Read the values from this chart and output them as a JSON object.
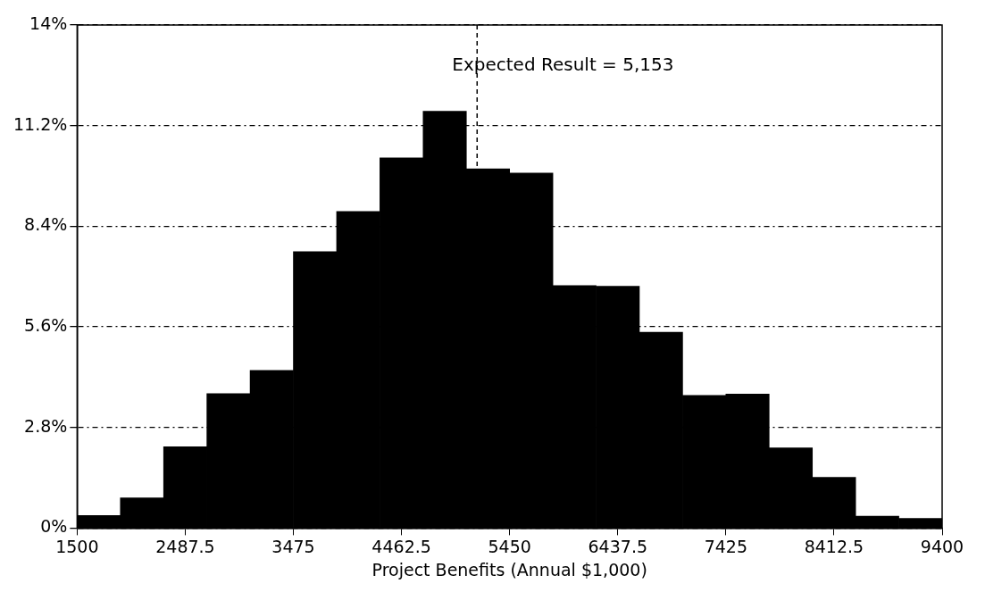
{
  "chart_data": {
    "type": "histogram",
    "xlabel": "Project Benefits (Annual $1,000)",
    "bins": [
      1500,
      1895,
      2290,
      2685,
      3080,
      3475,
      3870,
      4265,
      4660,
      5055,
      5450,
      5845,
      6240,
      6635,
      7030,
      7425,
      7820,
      8215,
      8610,
      9005,
      9400
    ],
    "values": [
      0.35,
      0.84,
      2.26,
      3.74,
      4.39,
      7.69,
      8.81,
      10.3,
      11.6,
      10.0,
      9.88,
      6.75,
      6.73,
      5.45,
      3.69,
      3.73,
      2.23,
      1.41,
      0.33,
      0.27
    ],
    "color": "#000000",
    "xlim": [
      1500,
      9400
    ],
    "xticks": [
      1500,
      2487.5,
      3475,
      4462.5,
      5450,
      6437.5,
      7425,
      8412.5,
      9400
    ],
    "ylim": [
      0,
      14
    ],
    "yticks": [
      {
        "value": 0,
        "label": "0%"
      },
      {
        "value": 2.8,
        "label": "2.8%"
      },
      {
        "value": 5.6,
        "label": "5.6%"
      },
      {
        "value": 8.4,
        "label": "8.4%"
      },
      {
        "value": 11.2,
        "label": "11.2%"
      },
      {
        "value": 14,
        "label": "14%"
      }
    ],
    "grid": "y",
    "ref_lines": [
      {
        "axis": "x",
        "value": 5153,
        "label": "Expected Result = 5,153",
        "line_style": "dashed"
      }
    ]
  }
}
